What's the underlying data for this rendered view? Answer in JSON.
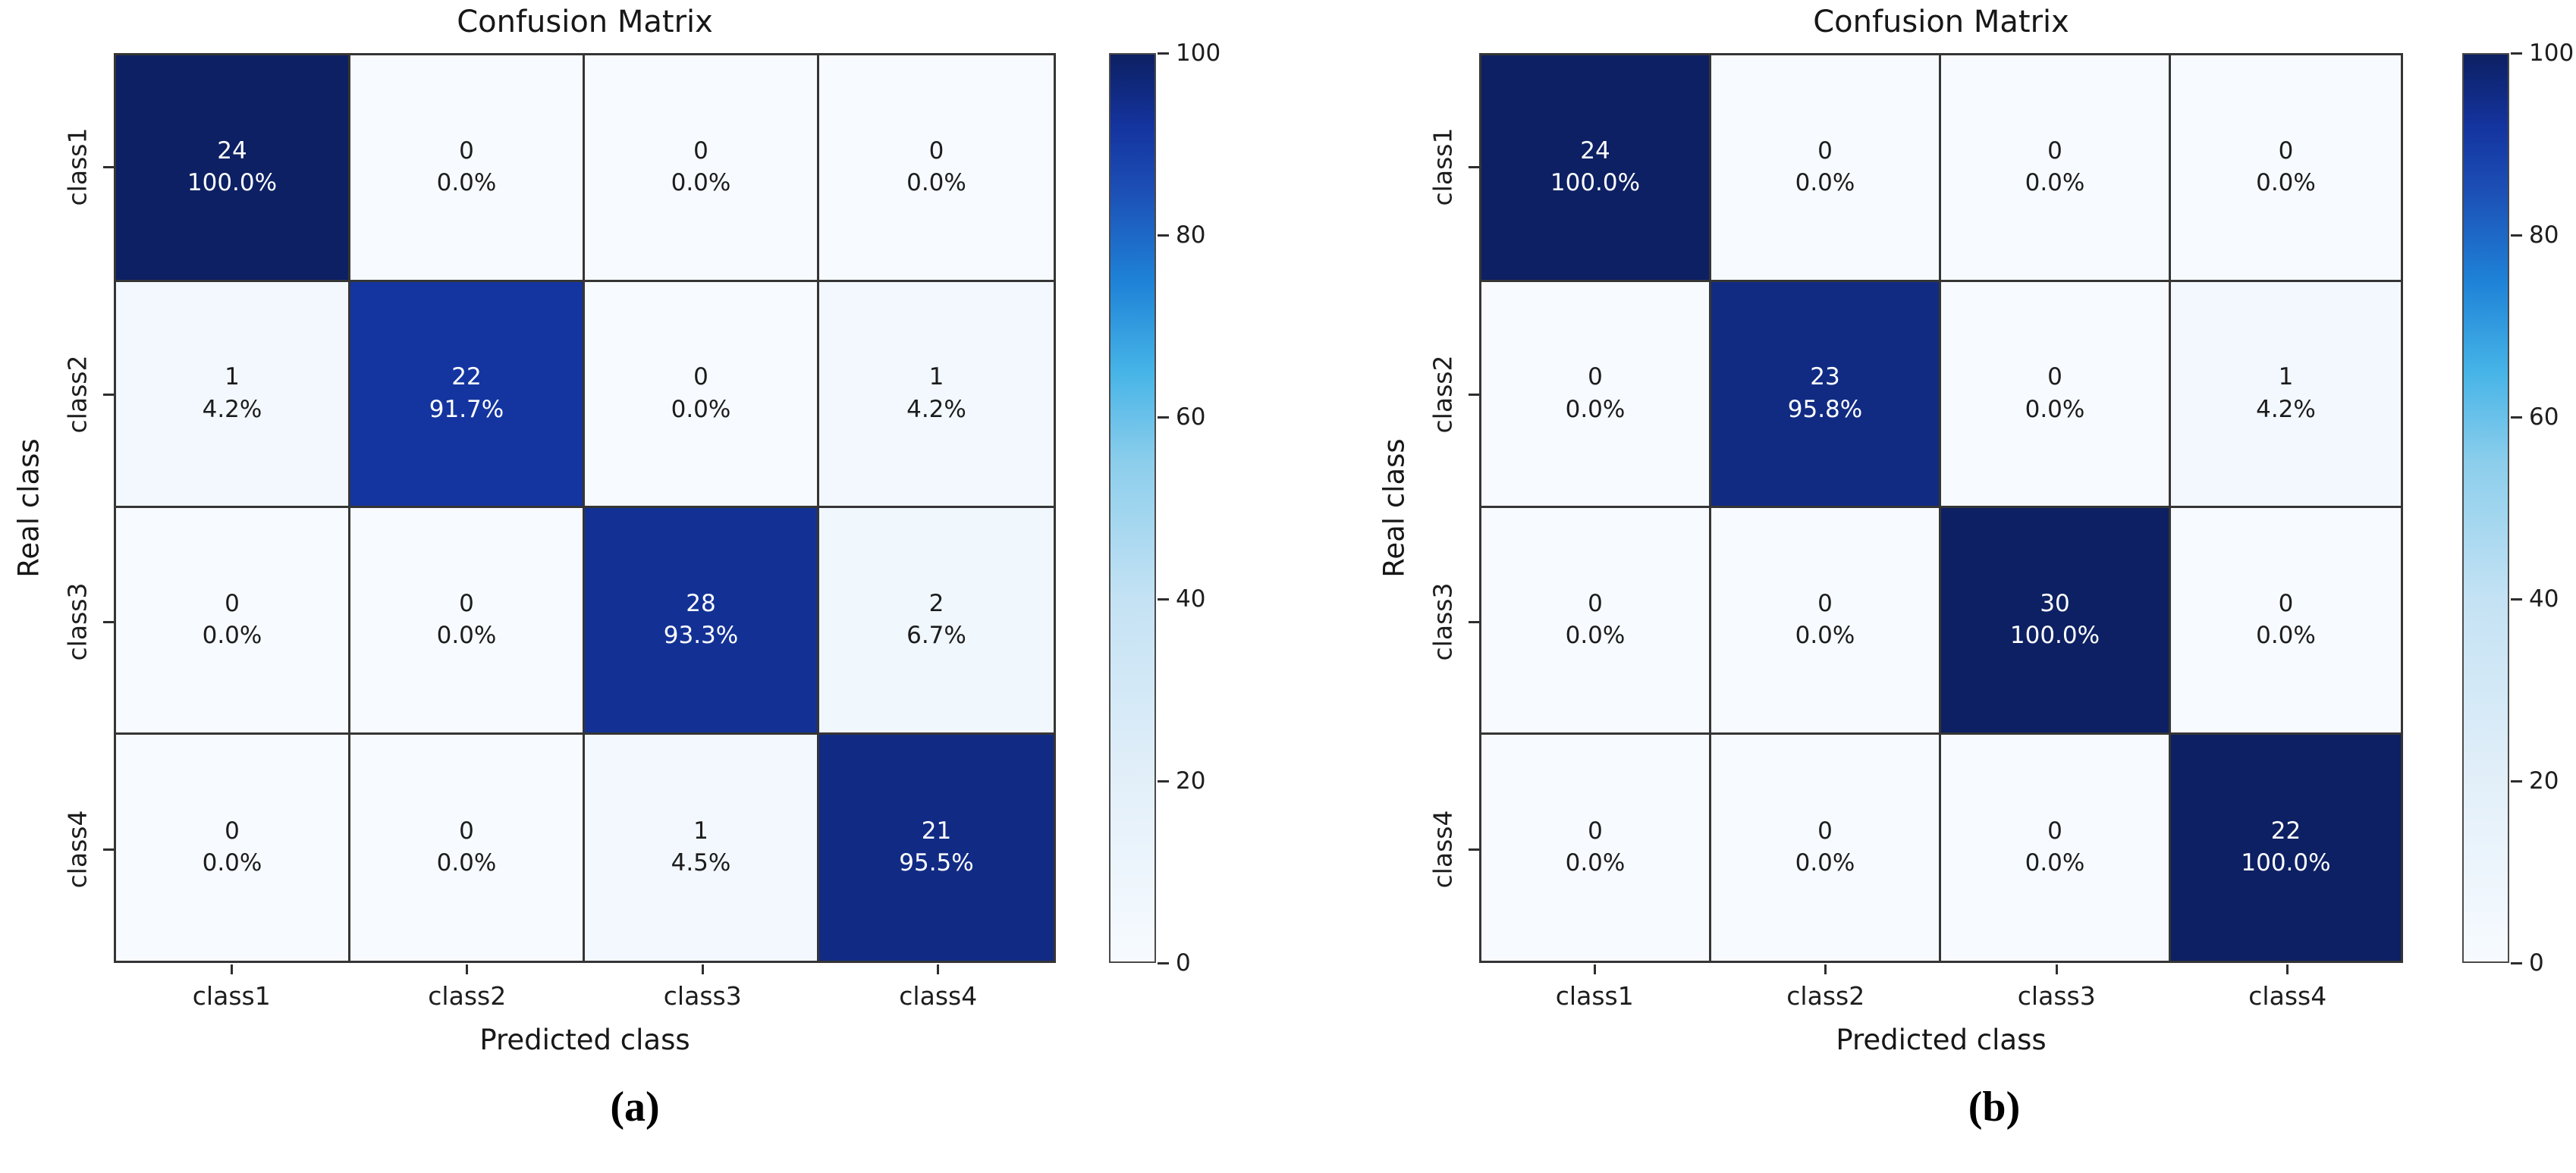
{
  "figure": {
    "background": "#ffffff"
  },
  "colors": {
    "grid_line": "#353535",
    "axis_text": "#171717",
    "tick_mark": "#2e2e2e",
    "cell_text_dark": "#1c1c1c",
    "cell_text_light": "#ffffff",
    "colormap_stops": [
      {
        "v": 0,
        "c": "#f7fbff"
      },
      {
        "v": 20,
        "c": "#e2eff9"
      },
      {
        "v": 40,
        "c": "#c4e2f4"
      },
      {
        "v": 55,
        "c": "#8cceec"
      },
      {
        "v": 65,
        "c": "#46b4e7"
      },
      {
        "v": 75,
        "c": "#1e82d7"
      },
      {
        "v": 85,
        "c": "#1c4fb6"
      },
      {
        "v": 92,
        "c": "#14349f"
      },
      {
        "v": 100,
        "c": "#0d2063"
      }
    ]
  },
  "chart_data": [
    {
      "type": "heatmap",
      "panel_label": "(a)",
      "title": "Confusion Matrix",
      "xlabel": "Predicted class",
      "ylabel": "Real class",
      "x_categories": [
        "class1",
        "class2",
        "class3",
        "class4"
      ],
      "y_categories": [
        "class1",
        "class2",
        "class3",
        "class4"
      ],
      "counts": [
        [
          24,
          0,
          0,
          0
        ],
        [
          1,
          22,
          0,
          1
        ],
        [
          0,
          0,
          28,
          2
        ],
        [
          0,
          0,
          1,
          21
        ]
      ],
      "percent_labels": [
        [
          "100.0%",
          "0.0%",
          "0.0%",
          "0.0%"
        ],
        [
          "4.2%",
          "91.7%",
          "0.0%",
          "4.2%"
        ],
        [
          "0.0%",
          "0.0%",
          "93.3%",
          "6.7%"
        ],
        [
          "0.0%",
          "0.0%",
          "4.5%",
          "95.5%"
        ]
      ],
      "colorbar": {
        "min": 0,
        "max": 100,
        "ticks": [
          0,
          20,
          40,
          60,
          80,
          100
        ],
        "position": "right"
      },
      "grid": true,
      "legend": "none"
    },
    {
      "type": "heatmap",
      "panel_label": "(b)",
      "title": "Confusion Matrix",
      "xlabel": "Predicted class",
      "ylabel": "Real class",
      "x_categories": [
        "class1",
        "class2",
        "class3",
        "class4"
      ],
      "y_categories": [
        "class1",
        "class2",
        "class3",
        "class4"
      ],
      "counts": [
        [
          24,
          0,
          0,
          0
        ],
        [
          0,
          23,
          0,
          1
        ],
        [
          0,
          0,
          30,
          0
        ],
        [
          0,
          0,
          0,
          22
        ]
      ],
      "percent_labels": [
        [
          "100.0%",
          "0.0%",
          "0.0%",
          "0.0%"
        ],
        [
          "0.0%",
          "95.8%",
          "0.0%",
          "4.2%"
        ],
        [
          "0.0%",
          "0.0%",
          "100.0%",
          "0.0%"
        ],
        [
          "0.0%",
          "0.0%",
          "0.0%",
          "100.0%"
        ]
      ],
      "colorbar": {
        "min": 0,
        "max": 100,
        "ticks": [
          0,
          20,
          40,
          60,
          80,
          100
        ],
        "position": "right"
      },
      "grid": true,
      "legend": "none"
    }
  ]
}
